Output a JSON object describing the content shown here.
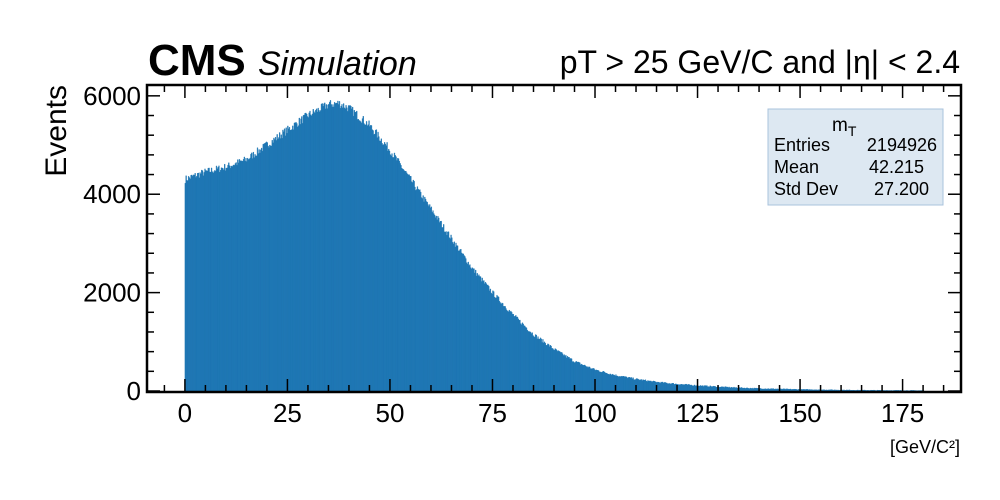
{
  "header": {
    "experiment": "CMS",
    "label": "Simulation",
    "selection": "pT > 25 GeV/C and |η| < 2.4"
  },
  "stats_box": {
    "title_main": "m",
    "title_sub": "T",
    "rows": [
      {
        "label": "Entries",
        "value": "2194926"
      },
      {
        "label": "Mean",
        "value": "42.215"
      },
      {
        "label": "Std Dev",
        "value": "27.200"
      }
    ]
  },
  "colors": {
    "fill": "#1f77b4",
    "stats_bg": "#dde8f2",
    "stats_border": "#a9c3dc"
  },
  "chart_data": {
    "type": "bar",
    "histogram": true,
    "title": "",
    "xlabel": "[GeV/C²]",
    "ylabel": "Events",
    "xlim": [
      -9,
      189
    ],
    "ylim": [
      0,
      6200
    ],
    "xticks": [
      0,
      25,
      50,
      75,
      100,
      125,
      150,
      175
    ],
    "yticks": [
      0,
      2000,
      4000,
      6000
    ],
    "bin_range": [
      0,
      180
    ],
    "series": [
      {
        "x": [
          0,
          5,
          10,
          15,
          20,
          25,
          30,
          35,
          37.5,
          40,
          45,
          50,
          55,
          60,
          65,
          70,
          75,
          80,
          85,
          90,
          95,
          100,
          105,
          110,
          115,
          120,
          125,
          130,
          135,
          140,
          145,
          150,
          155,
          160,
          165,
          170,
          175,
          180
        ],
        "values": [
          4300,
          4450,
          4550,
          4700,
          5000,
          5300,
          5600,
          5820,
          5850,
          5750,
          5400,
          4900,
          4300,
          3700,
          3100,
          2500,
          2000,
          1550,
          1150,
          850,
          600,
          430,
          320,
          240,
          180,
          140,
          110,
          85,
          65,
          50,
          40,
          30,
          25,
          20,
          15,
          12,
          10,
          8
        ]
      }
    ],
    "legend": "none",
    "grid": false
  }
}
